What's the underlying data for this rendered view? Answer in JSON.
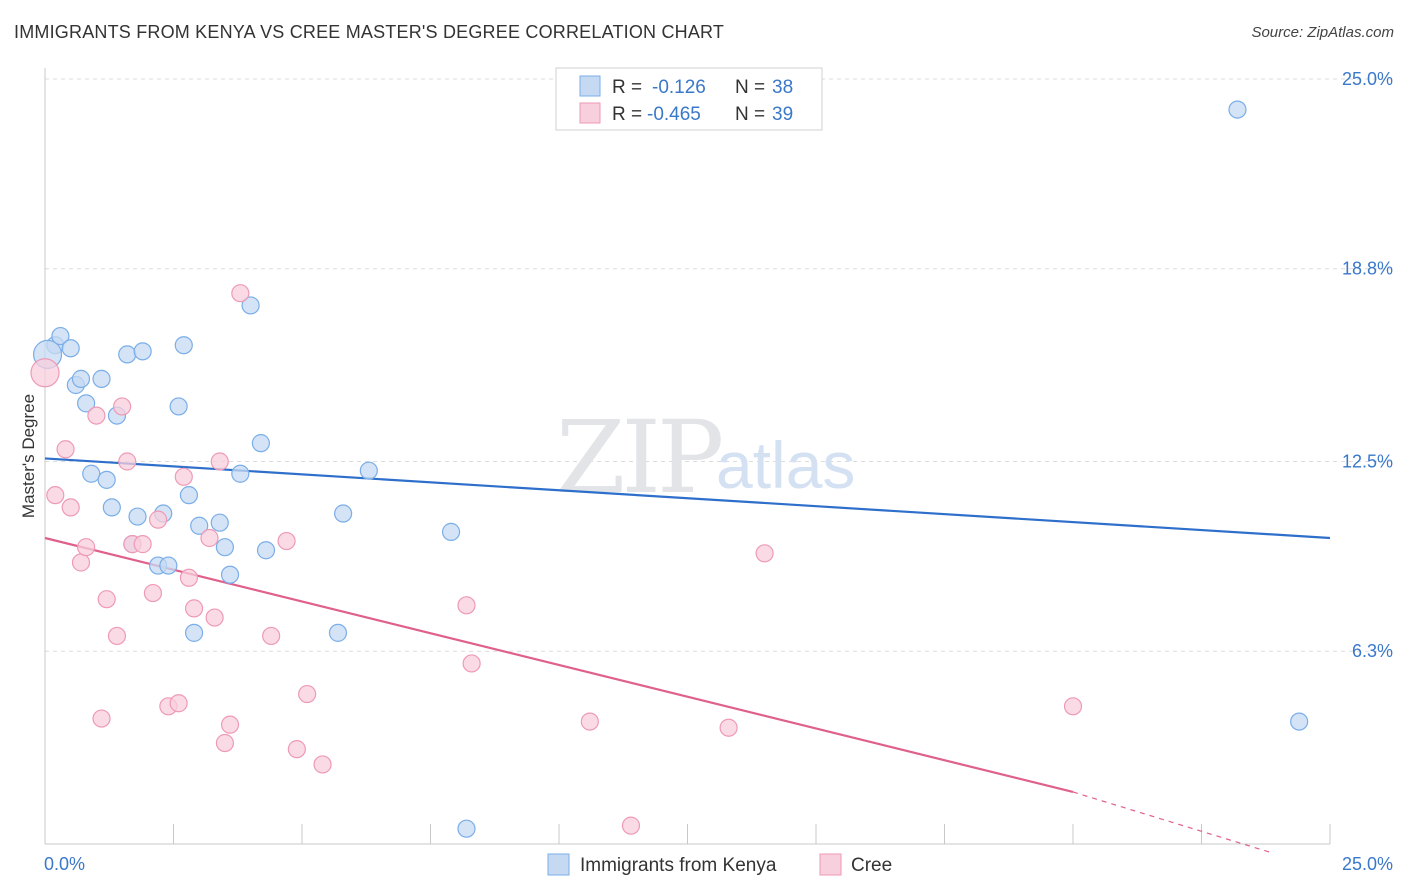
{
  "title": "IMMIGRANTS FROM KENYA VS CREE MASTER'S DEGREE CORRELATION CHART",
  "source": "Source: ZipAtlas.com",
  "chart_data": {
    "type": "scatter",
    "title": "IMMIGRANTS FROM KENYA VS CREE MASTER'S DEGREE CORRELATION CHART",
    "xlabel": "",
    "ylabel": "Master's Degree",
    "xlim": [
      0,
      25
    ],
    "ylim": [
      0,
      25
    ],
    "x_tick_labels": [
      "0.0%",
      "25.0%"
    ],
    "y_tick_labels": [
      "25.0%",
      "18.8%",
      "12.5%",
      "6.3%"
    ],
    "y_tick_values": [
      25.0,
      18.8,
      12.5,
      6.3
    ],
    "grid": true,
    "legend_inset": {
      "rows": [
        {
          "r_label": "R =",
          "r_value": "-0.126",
          "n_label": "N =",
          "n_value": "38"
        },
        {
          "r_label": "R =",
          "r_value": "-0.465",
          "n_label": "N =",
          "n_value": "39"
        }
      ]
    },
    "series": [
      {
        "name": "Immigrants from Kenya",
        "color": "#7aaee8",
        "fill": "#c5d9f3",
        "line_color": "#2e6fcb",
        "trend": {
          "x0": 0.0,
          "y0": 12.6,
          "x1": 25.0,
          "y1": 10.0
        },
        "points": [
          [
            0.2,
            16.3
          ],
          [
            0.3,
            16.6
          ],
          [
            0.5,
            16.2
          ],
          [
            0.6,
            15.0
          ],
          [
            0.7,
            15.2
          ],
          [
            0.8,
            14.4
          ],
          [
            0.9,
            12.1
          ],
          [
            1.1,
            15.2
          ],
          [
            1.2,
            11.9
          ],
          [
            1.3,
            11.0
          ],
          [
            1.4,
            14.0
          ],
          [
            1.6,
            16.0
          ],
          [
            1.7,
            9.8
          ],
          [
            1.8,
            10.7
          ],
          [
            1.9,
            16.1
          ],
          [
            2.2,
            9.1
          ],
          [
            2.3,
            10.8
          ],
          [
            2.4,
            9.1
          ],
          [
            2.6,
            14.3
          ],
          [
            2.7,
            16.3
          ],
          [
            2.8,
            11.4
          ],
          [
            2.9,
            6.9
          ],
          [
            3.0,
            10.4
          ],
          [
            3.4,
            10.5
          ],
          [
            3.5,
            9.7
          ],
          [
            3.6,
            8.8
          ],
          [
            3.8,
            12.1
          ],
          [
            4.0,
            17.6
          ],
          [
            4.2,
            13.1
          ],
          [
            4.3,
            9.6
          ],
          [
            5.7,
            6.9
          ],
          [
            5.8,
            10.8
          ],
          [
            6.3,
            12.2
          ],
          [
            7.9,
            10.2
          ],
          [
            8.2,
            0.5
          ],
          [
            23.2,
            24.0
          ],
          [
            24.4,
            4.0
          ],
          [
            0.05,
            16.0
          ]
        ]
      },
      {
        "name": "Cree",
        "color": "#ee9ab6",
        "fill": "#f8cfdc",
        "line_color": "#e0608c",
        "trend": {
          "x0": 0.0,
          "y0": 10.0,
          "x1": 20.0,
          "y1": 1.7,
          "dash_to_x": 25.0,
          "dash_to_y": -0.4
        },
        "points": [
          [
            0.0,
            15.4
          ],
          [
            0.2,
            11.4
          ],
          [
            0.4,
            12.9
          ],
          [
            0.5,
            11.0
          ],
          [
            0.7,
            9.2
          ],
          [
            0.8,
            9.7
          ],
          [
            1.0,
            14.0
          ],
          [
            1.1,
            4.1
          ],
          [
            1.2,
            8.0
          ],
          [
            1.4,
            6.8
          ],
          [
            1.5,
            14.3
          ],
          [
            1.6,
            12.5
          ],
          [
            1.7,
            9.8
          ],
          [
            1.9,
            9.8
          ],
          [
            2.1,
            8.2
          ],
          [
            2.2,
            10.6
          ],
          [
            2.4,
            4.5
          ],
          [
            2.6,
            4.6
          ],
          [
            2.7,
            12.0
          ],
          [
            2.8,
            8.7
          ],
          [
            2.9,
            7.7
          ],
          [
            3.2,
            10.0
          ],
          [
            3.3,
            7.4
          ],
          [
            3.4,
            12.5
          ],
          [
            3.5,
            3.3
          ],
          [
            3.6,
            3.9
          ],
          [
            3.8,
            18.0
          ],
          [
            4.4,
            6.8
          ],
          [
            4.7,
            9.9
          ],
          [
            4.9,
            3.1
          ],
          [
            5.1,
            4.9
          ],
          [
            5.4,
            2.6
          ],
          [
            8.2,
            7.8
          ],
          [
            8.3,
            5.9
          ],
          [
            10.6,
            4.0
          ],
          [
            11.4,
            0.6
          ],
          [
            13.3,
            3.8
          ],
          [
            14.0,
            9.5
          ],
          [
            20.0,
            4.5
          ]
        ]
      }
    ]
  }
}
